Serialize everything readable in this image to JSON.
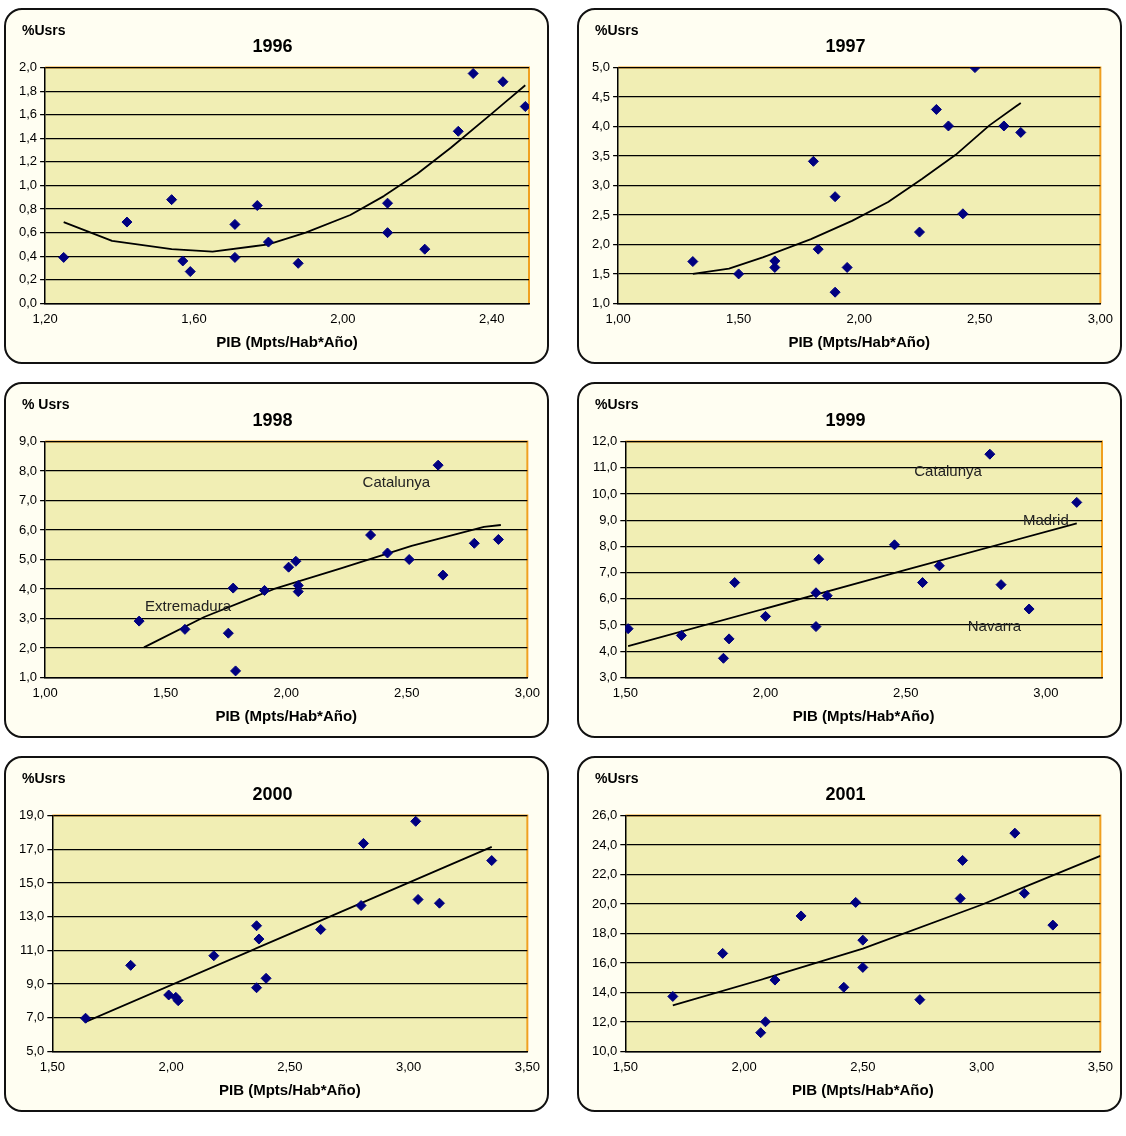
{
  "chart_data": [
    {
      "type": "scatter",
      "title": "1996",
      "ylabel": "%Usrs",
      "xlabel": "PIB (Mpts/Hab*Año)",
      "xlim": [
        1.2,
        2.5
      ],
      "ylim": [
        0,
        2
      ],
      "xticks": [
        {
          "value": 1.2,
          "label": "1,20"
        },
        {
          "value": 1.6,
          "label": "1,60"
        },
        {
          "value": 2,
          "label": "2,00"
        },
        {
          "value": 2.4,
          "label": "2,40"
        }
      ],
      "yticks": [
        {
          "value": 0,
          "label": "0,0"
        },
        {
          "value": 0.2,
          "label": "0,2"
        },
        {
          "value": 0.4,
          "label": "0,4"
        },
        {
          "value": 0.6,
          "label": "0,6"
        },
        {
          "value": 0.8,
          "label": "0,8"
        },
        {
          "value": 1,
          "label": "1,0"
        },
        {
          "value": 1.2,
          "label": "1,2"
        },
        {
          "value": 1.4,
          "label": "1,4"
        },
        {
          "value": 1.6,
          "label": "1,6"
        },
        {
          "value": 1.8,
          "label": "1,8"
        },
        {
          "value": 2,
          "label": "2,0"
        }
      ],
      "grid": "y",
      "legend": false,
      "series": [
        {
          "type": "scatter",
          "marker": "diamond",
          "color": "#000080",
          "x": [
            1.25,
            1.42,
            1.54,
            1.57,
            1.59,
            1.71,
            1.71,
            1.77,
            1.8,
            1.88,
            2.12,
            2.12,
            2.22,
            2.31,
            2.35,
            2.43,
            2.49
          ],
          "values": [
            0.39,
            0.69,
            0.88,
            0.36,
            0.27,
            0.67,
            0.39,
            0.83,
            0.52,
            0.34,
            0.85,
            0.6,
            0.46,
            1.46,
            1.95,
            1.88,
            1.67
          ]
        },
        {
          "type": "line",
          "color": "#000000",
          "x": [
            1.25,
            1.38,
            1.54,
            1.65,
            1.8,
            1.9,
            2.02,
            2.11,
            2.2,
            2.29,
            2.4,
            2.49
          ],
          "values": [
            0.69,
            0.53,
            0.46,
            0.44,
            0.5,
            0.6,
            0.75,
            0.91,
            1.1,
            1.32,
            1.61,
            1.85
          ]
        }
      ]
    },
    {
      "type": "scatter",
      "title": "1997",
      "ylabel": "%Usrs",
      "xlabel": "PIB (Mpts/Hab*Año)",
      "xlim": [
        1,
        3
      ],
      "ylim": [
        1,
        5
      ],
      "xticks": [
        {
          "value": 1,
          "label": "1,00"
        },
        {
          "value": 1.5,
          "label": "1,50"
        },
        {
          "value": 2,
          "label": "2,00"
        },
        {
          "value": 2.5,
          "label": "2,50"
        },
        {
          "value": 3,
          "label": "3,00"
        }
      ],
      "yticks": [
        {
          "value": 1,
          "label": "1,0"
        },
        {
          "value": 1.5,
          "label": "1,5"
        },
        {
          "value": 2,
          "label": "2,0"
        },
        {
          "value": 2.5,
          "label": "2,5"
        },
        {
          "value": 3,
          "label": "3,0"
        },
        {
          "value": 3.5,
          "label": "3,5"
        },
        {
          "value": 4,
          "label": "4,0"
        },
        {
          "value": 4.5,
          "label": "4,5"
        },
        {
          "value": 5,
          "label": "5,0"
        }
      ],
      "grid": "y",
      "legend": false,
      "series": [
        {
          "type": "scatter",
          "marker": "diamond",
          "color": "#000080",
          "x": [
            1.31,
            1.5,
            1.65,
            1.65,
            1.81,
            1.83,
            1.9,
            1.9,
            1.95,
            2.25,
            2.32,
            2.37,
            2.43,
            2.48,
            2.6,
            2.67
          ],
          "values": [
            1.71,
            1.5,
            1.72,
            1.61,
            3.41,
            1.92,
            2.81,
            1.19,
            1.61,
            2.21,
            4.29,
            4.01,
            2.52,
            5,
            4.01,
            3.9
          ]
        },
        {
          "type": "line",
          "color": "#000000",
          "x": [
            1.31,
            1.46,
            1.6,
            1.8,
            1.97,
            2.12,
            2.26,
            2.4,
            2.54,
            2.67
          ],
          "values": [
            1.5,
            1.59,
            1.78,
            2.09,
            2.4,
            2.72,
            3.11,
            3.52,
            4.02,
            4.4
          ]
        }
      ]
    },
    {
      "type": "scatter",
      "title": "1998",
      "ylabel": "% Usrs",
      "xlabel": "PIB (Mpts/Hab*Año)",
      "xlim": [
        1,
        3
      ],
      "ylim": [
        1,
        9
      ],
      "xticks": [
        {
          "value": 1,
          "label": "1,00"
        },
        {
          "value": 1.5,
          "label": "1,50"
        },
        {
          "value": 2,
          "label": "2,00"
        },
        {
          "value": 2.5,
          "label": "2,50"
        },
        {
          "value": 3,
          "label": "3,00"
        }
      ],
      "yticks": [
        {
          "value": 1,
          "label": "1,0"
        },
        {
          "value": 2,
          "label": "2,0"
        },
        {
          "value": 3,
          "label": "3,0"
        },
        {
          "value": 4,
          "label": "4,0"
        },
        {
          "value": 5,
          "label": "5,0"
        },
        {
          "value": 6,
          "label": "6,0"
        },
        {
          "value": 7,
          "label": "7,0"
        },
        {
          "value": 8,
          "label": "8,0"
        },
        {
          "value": 9,
          "label": "9,0"
        }
      ],
      "grid": "y",
      "legend": false,
      "annotations": [
        {
          "text": "Catalunya",
          "x": 2.63,
          "y": 8.2
        },
        {
          "text": "Extremadura",
          "x": 1.39,
          "y": 2.91
        }
      ],
      "series": [
        {
          "type": "scatter",
          "marker": "diamond",
          "color": "#000080",
          "x": [
            1.39,
            1.58,
            1.76,
            1.78,
            1.79,
            1.91,
            2.01,
            2.04,
            2.05,
            2.05,
            2.35,
            2.42,
            2.51,
            2.63,
            2.65,
            2.78,
            2.88
          ],
          "values": [
            2.91,
            2.63,
            2.5,
            4.03,
            1.22,
            3.95,
            4.74,
            4.94,
            4.12,
            3.91,
            5.83,
            5.22,
            5,
            8.2,
            4.47,
            5.55,
            5.68
          ]
        },
        {
          "type": "line",
          "color": "#000000",
          "x": [
            1.41,
            1.66,
            1.95,
            2.23,
            2.52,
            2.82,
            2.89
          ],
          "values": [
            2.02,
            3.05,
            4,
            4.71,
            5.46,
            6.11,
            6.17
          ]
        }
      ]
    },
    {
      "type": "scatter",
      "title": "1999",
      "ylabel": "%Usrs",
      "xlabel": "PIB (Mpts/Hab*Año)",
      "xlim": [
        1.5,
        3.2
      ],
      "ylim": [
        3,
        12
      ],
      "xticks": [
        {
          "value": 1.5,
          "label": "1,50"
        },
        {
          "value": 2,
          "label": "2,00"
        },
        {
          "value": 2.5,
          "label": "2,50"
        },
        {
          "value": 3,
          "label": "3,00"
        }
      ],
      "yticks": [
        {
          "value": 3,
          "label": "3,0"
        },
        {
          "value": 4,
          "label": "4,0"
        },
        {
          "value": 5,
          "label": "5,0"
        },
        {
          "value": 6,
          "label": "6,0"
        },
        {
          "value": 7,
          "label": "7,0"
        },
        {
          "value": 8,
          "label": "8,0"
        },
        {
          "value": 9,
          "label": "9,0"
        },
        {
          "value": 10,
          "label": "10,0"
        },
        {
          "value": 11,
          "label": "11,0"
        },
        {
          "value": 12,
          "label": "12,0"
        }
      ],
      "grid": "y",
      "legend": false,
      "annotations": [
        {
          "text": "Catalunya",
          "x": 2.8,
          "y": 11.52
        },
        {
          "text": "Madrid",
          "x": 3.11,
          "y": 9.68
        },
        {
          "text": "Navarra",
          "x": 2.94,
          "y": 5.61
        }
      ],
      "series": [
        {
          "type": "scatter",
          "marker": "diamond",
          "color": "#000080",
          "x": [
            1.51,
            1.7,
            1.85,
            1.87,
            1.89,
            2,
            2.18,
            2.18,
            2.19,
            2.22,
            2.46,
            2.56,
            2.62,
            2.8,
            2.84,
            2.94,
            3.11
          ],
          "values": [
            4.86,
            4.6,
            3.73,
            4.47,
            6.62,
            5.33,
            6.23,
            4.94,
            7.51,
            6.12,
            8.06,
            6.62,
            7.26,
            11.52,
            6.54,
            5.61,
            9.68
          ]
        },
        {
          "type": "line",
          "color": "#000000",
          "x": [
            1.51,
            2.5,
            3.11
          ],
          "values": [
            4.19,
            7.1,
            8.88
          ]
        }
      ]
    },
    {
      "type": "scatter",
      "title": "2000",
      "ylabel": "%Usrs",
      "xlabel": "PIB (Mpts/Hab*Año)",
      "xlim": [
        1.5,
        3.5
      ],
      "ylim": [
        5,
        19
      ],
      "xticks": [
        {
          "value": 1.5,
          "label": "1,50"
        },
        {
          "value": 2,
          "label": "2,00"
        },
        {
          "value": 2.5,
          "label": "2,50"
        },
        {
          "value": 3,
          "label": "3,00"
        },
        {
          "value": 3.5,
          "label": "3,50"
        }
      ],
      "yticks": [
        {
          "value": 5,
          "label": "5,0"
        },
        {
          "value": 7,
          "label": "7,0"
        },
        {
          "value": 9,
          "label": "9,0"
        },
        {
          "value": 11,
          "label": "11,0"
        },
        {
          "value": 13,
          "label": "13,0"
        },
        {
          "value": 15,
          "label": "15,0"
        },
        {
          "value": 17,
          "label": "17,0"
        },
        {
          "value": 19,
          "label": "19,0"
        }
      ],
      "grid": "y",
      "legend": false,
      "series": [
        {
          "type": "scatter",
          "marker": "diamond",
          "color": "#000080",
          "x": [
            1.64,
            1.83,
            1.99,
            2.02,
            2.03,
            2.18,
            2.36,
            2.36,
            2.37,
            2.4,
            2.63,
            2.8,
            2.81,
            3.03,
            3.04,
            3.13,
            3.35
          ],
          "values": [
            6.97,
            10.11,
            8.35,
            8.21,
            8.01,
            10.68,
            8.78,
            12.46,
            11.67,
            9.34,
            12.24,
            13.66,
            17.35,
            18.66,
            14.02,
            13.8,
            16.33
          ]
        },
        {
          "type": "line",
          "color": "#000000",
          "x": [
            1.64,
            2.5,
            3.35
          ],
          "values": [
            6.75,
            11.98,
            17.14
          ]
        }
      ]
    },
    {
      "type": "scatter",
      "title": "2001",
      "ylabel": "%Usrs",
      "xlabel": "PIB (Mpts/Hab*Año)",
      "xlim": [
        1.5,
        3.5
      ],
      "ylim": [
        10,
        26
      ],
      "xticks": [
        {
          "value": 1.5,
          "label": "1,50"
        },
        {
          "value": 2,
          "label": "2,00"
        },
        {
          "value": 2.5,
          "label": "2,50"
        },
        {
          "value": 3,
          "label": "3,00"
        },
        {
          "value": 3.5,
          "label": "3,50"
        }
      ],
      "yticks": [
        {
          "value": 10,
          "label": "10,0"
        },
        {
          "value": 12,
          "label": "12,0"
        },
        {
          "value": 14,
          "label": "14,0"
        },
        {
          "value": 16,
          "label": "16,0"
        },
        {
          "value": 18,
          "label": "18,0"
        },
        {
          "value": 20,
          "label": "20,0"
        },
        {
          "value": 22,
          "label": "22,0"
        },
        {
          "value": 24,
          "label": "24,0"
        },
        {
          "value": 26,
          "label": "26,0"
        }
      ],
      "grid": "y",
      "legend": false,
      "series": [
        {
          "type": "scatter",
          "marker": "diamond",
          "color": "#000080",
          "x": [
            1.7,
            1.91,
            2.07,
            2.09,
            2.13,
            2.24,
            2.42,
            2.47,
            2.5,
            2.5,
            2.74,
            2.91,
            2.92,
            3.14,
            3.18,
            3.3
          ],
          "values": [
            13.73,
            16.65,
            11.27,
            12.01,
            14.84,
            19.19,
            14.35,
            20.11,
            17.55,
            15.7,
            13.51,
            20.38,
            22.96,
            24.81,
            20.73,
            18.57
          ]
        },
        {
          "type": "line",
          "color": "#000000",
          "x": [
            1.7,
            2.1,
            2.5,
            3,
            3.5
          ],
          "values": [
            13.12,
            15,
            16.97,
            19.95,
            23.27
          ]
        }
      ]
    }
  ]
}
